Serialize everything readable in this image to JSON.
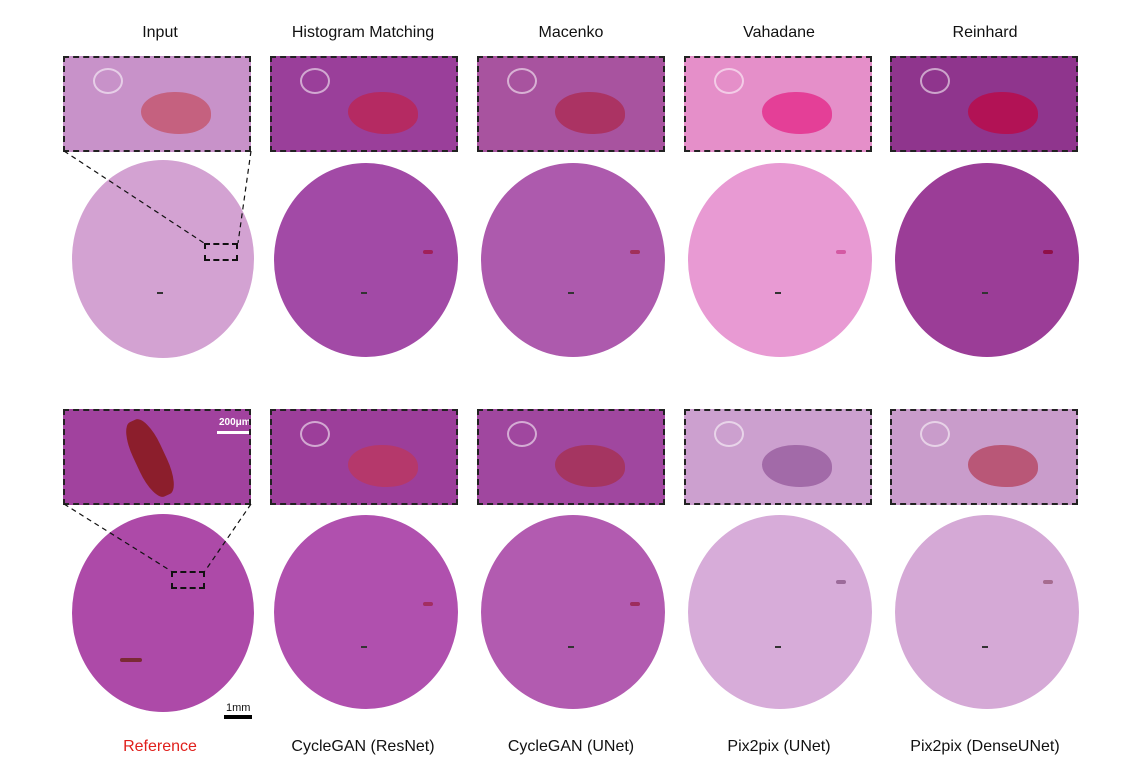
{
  "top_row_labels": [
    "Input",
    "Histogram Matching",
    "Macenko",
    "Vahadane",
    "Reinhard"
  ],
  "bottom_row_labels": [
    "Reference",
    "CycleGAN (ResNet)",
    "CycleGAN (UNet)",
    "Pix2pix (UNet)",
    "Pix2pix (DenseUNet)"
  ],
  "colors": {
    "reference_label": "#e0201c",
    "top": [
      "#d3a2d2",
      "#a24aa6",
      "#ad5aad",
      "#e89ad3",
      "#9b3d97"
    ],
    "bottom": [
      "#ad4aa8",
      "#b050ae",
      "#b25bb0",
      "#d7acd9",
      "#d5a9d6"
    ]
  },
  "scale_bars": {
    "tissue": "1mm",
    "zoom": "200μm"
  }
}
